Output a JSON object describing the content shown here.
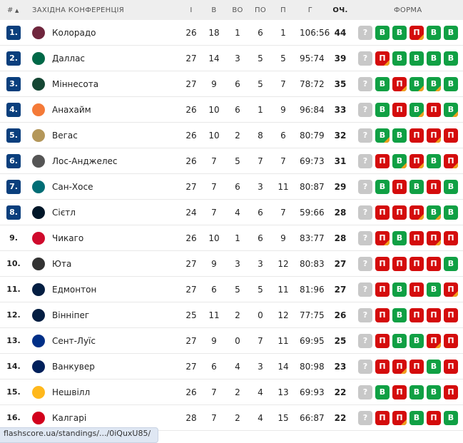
{
  "header": {
    "rank": "#",
    "sort_icon": "triangle-up",
    "conference": "ЗАХІДНА КОНФЕРЕНЦІЯ",
    "gp": "І",
    "w": "В",
    "otw": "ВО",
    "otl": "ПО",
    "l": "П",
    "goals": "Г",
    "pts": "ОЧ.",
    "form": "ФОРМА"
  },
  "colors": {
    "qualified_rank": "#0a3f7d",
    "win": "#10a044",
    "loss": "#d40c0c",
    "overtime_corner": "#f0a01e",
    "upcoming": "#c8c8c8"
  },
  "labels": {
    "win": "В",
    "loss": "П",
    "upcoming": "?"
  },
  "rows": [
    {
      "rank": "1.",
      "team": "Колорадо",
      "gp": "26",
      "w": "18",
      "otw": "1",
      "otl": "6",
      "l": "1",
      "goals": "106:56",
      "pts": "44",
      "form": [
        "W",
        "W",
        "L*",
        "W",
        "W"
      ],
      "logo": "#6f263d"
    },
    {
      "rank": "2.",
      "team": "Даллас",
      "gp": "27",
      "w": "14",
      "otw": "3",
      "otl": "5",
      "l": "5",
      "goals": "95:74",
      "pts": "39",
      "form": [
        "L*",
        "W",
        "W",
        "W",
        "W"
      ],
      "logo": "#006847"
    },
    {
      "rank": "3.",
      "team": "Міннесота",
      "gp": "27",
      "w": "9",
      "otw": "6",
      "otl": "5",
      "l": "7",
      "goals": "78:72",
      "pts": "35",
      "form": [
        "W",
        "L*",
        "W*",
        "W*",
        "W"
      ],
      "logo": "#154734"
    },
    {
      "rank": "4.",
      "team": "Анахайм",
      "gp": "26",
      "w": "10",
      "otw": "6",
      "otl": "1",
      "l": "9",
      "goals": "96:84",
      "pts": "33",
      "form": [
        "W",
        "L",
        "W*",
        "L",
        "W*"
      ],
      "logo": "#f47a38"
    },
    {
      "rank": "5.",
      "team": "Вегас",
      "gp": "26",
      "w": "10",
      "otw": "2",
      "otl": "8",
      "l": "6",
      "goals": "80:79",
      "pts": "32",
      "form": [
        "W*",
        "W",
        "L",
        "L*",
        "L"
      ],
      "logo": "#b4975a"
    },
    {
      "rank": "6.",
      "team": "Лос-Анджелес",
      "gp": "26",
      "w": "7",
      "otw": "5",
      "otl": "7",
      "l": "7",
      "goals": "69:73",
      "pts": "31",
      "form": [
        "L",
        "W*",
        "L*",
        "W",
        "L*"
      ],
      "logo": "#555555"
    },
    {
      "rank": "7.",
      "team": "Сан-Хосе",
      "gp": "27",
      "w": "7",
      "otw": "6",
      "otl": "3",
      "l": "11",
      "goals": "80:87",
      "pts": "29",
      "form": [
        "W",
        "L",
        "W",
        "L",
        "W"
      ],
      "logo": "#006d75"
    },
    {
      "rank": "8.",
      "team": "Сієтл",
      "gp": "24",
      "w": "7",
      "otw": "4",
      "otl": "6",
      "l": "7",
      "goals": "59:66",
      "pts": "28",
      "form": [
        "L",
        "L",
        "L*",
        "W*",
        "W"
      ],
      "logo": "#001628"
    },
    {
      "rank": "9.",
      "team": "Чикаго",
      "gp": "26",
      "w": "10",
      "otw": "1",
      "otl": "6",
      "l": "9",
      "goals": "83:77",
      "pts": "28",
      "form": [
        "L*",
        "W",
        "L",
        "L*",
        "L"
      ],
      "logo": "#cf0a2c"
    },
    {
      "rank": "10.",
      "team": "Юта",
      "gp": "27",
      "w": "9",
      "otw": "3",
      "otl": "3",
      "l": "12",
      "goals": "80:83",
      "pts": "27",
      "form": [
        "L",
        "L",
        "L",
        "L",
        "W"
      ],
      "logo": "#333333"
    },
    {
      "rank": "11.",
      "team": "Едмонтон",
      "gp": "27",
      "w": "6",
      "otw": "5",
      "otl": "5",
      "l": "11",
      "goals": "81:96",
      "pts": "27",
      "form": [
        "L",
        "W",
        "L",
        "W",
        "L*"
      ],
      "logo": "#041e42"
    },
    {
      "rank": "12.",
      "team": "Вінніпег",
      "gp": "25",
      "w": "11",
      "otw": "2",
      "otl": "0",
      "l": "12",
      "goals": "77:75",
      "pts": "26",
      "form": [
        "L",
        "W",
        "L",
        "L",
        "L"
      ],
      "logo": "#041e42"
    },
    {
      "rank": "13.",
      "team": "Сент-Луїс",
      "gp": "27",
      "w": "9",
      "otw": "0",
      "otl": "7",
      "l": "11",
      "goals": "69:95",
      "pts": "25",
      "form": [
        "L",
        "W",
        "W",
        "L*",
        "L"
      ],
      "logo": "#002f87"
    },
    {
      "rank": "14.",
      "team": "Ванкувер",
      "gp": "27",
      "w": "6",
      "otw": "4",
      "otl": "3",
      "l": "14",
      "goals": "80:98",
      "pts": "23",
      "form": [
        "L",
        "L*",
        "L",
        "W",
        "L"
      ],
      "logo": "#00205b"
    },
    {
      "rank": "15.",
      "team": "Нешвілл",
      "gp": "26",
      "w": "7",
      "otw": "2",
      "otl": "4",
      "l": "13",
      "goals": "69:93",
      "pts": "22",
      "form": [
        "W",
        "L",
        "W",
        "W",
        "L"
      ],
      "logo": "#ffb81c"
    },
    {
      "rank": "16.",
      "team": "Калгарі",
      "gp": "28",
      "w": "7",
      "otw": "2",
      "otl": "4",
      "l": "15",
      "goals": "66:87",
      "pts": "22",
      "form": [
        "L",
        "L*",
        "W",
        "L",
        "W"
      ],
      "logo": "#d2001c"
    }
  ],
  "status_url": "flashscore.ua/standings/.../0iQuxU85/"
}
